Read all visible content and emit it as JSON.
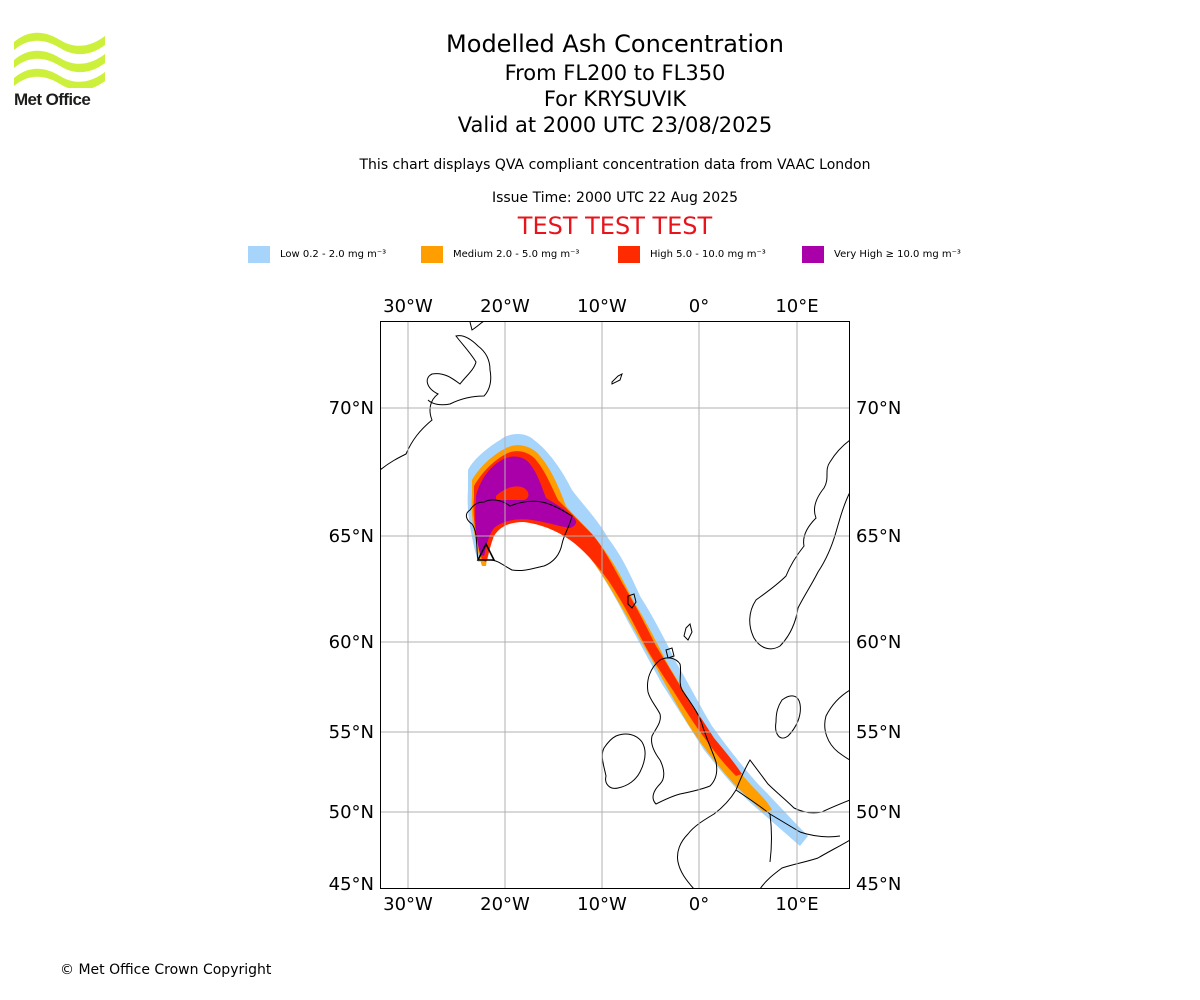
{
  "logo": {
    "text": "Met Office",
    "colour": "#cdf03c"
  },
  "title": {
    "line1": "Modelled Ash Concentration",
    "line2": "From FL200 to FL350",
    "line3": "For KRYSUVIK",
    "line4": "Valid at 2000 UTC 23/08/2025"
  },
  "subtitle": "This chart displays QVA compliant concentration data from VAAC London",
  "issue_time": "Issue Time: 2000 UTC 22 Aug 2025",
  "test_banner": "TEST TEST TEST",
  "legend": [
    {
      "label": "Low 0.2 - 2.0 mg m⁻³",
      "colour": "#a6d4fa"
    },
    {
      "label": "Medium 2.0 - 5.0 mg m⁻³",
      "colour": "#ff9e00"
    },
    {
      "label": "High 5.0 - 10.0 mg m⁻³",
      "colour": "#ff2b00"
    },
    {
      "label": "Very High  ≥  10.0 mg m⁻³",
      "colour": "#aa00aa"
    }
  ],
  "map": {
    "lon_ticks": [
      "30°W",
      "20°W",
      "10°W",
      "0°",
      "10°E"
    ],
    "lat_ticks": [
      "70°N",
      "65°N",
      "60°N",
      "55°N",
      "50°N",
      "45°N"
    ],
    "volcano": "KRYSUVIK",
    "land_colour": "#ffffff",
    "coast_colour": "#000000",
    "grid_colour": "#b0b0b0"
  },
  "copyright": "© Met Office Crown Copyright"
}
